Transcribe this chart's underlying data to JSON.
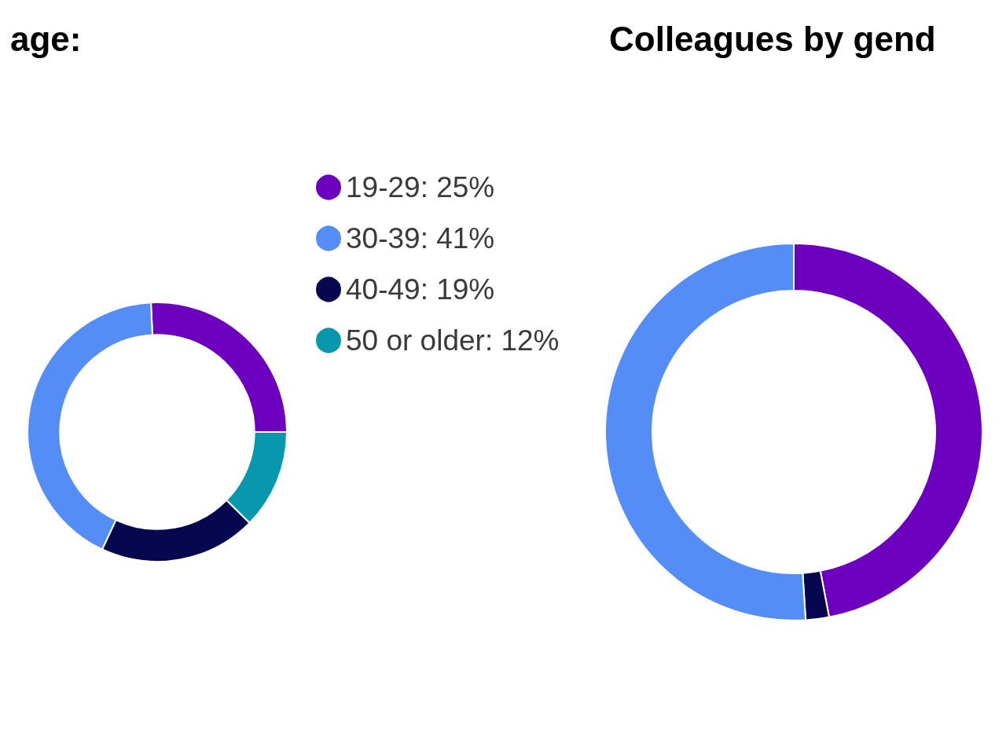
{
  "chart_data": [
    {
      "type": "donut",
      "title": "age:",
      "categories": [
        "19-29: 25%",
        "30-39: 41%",
        "40-49: 19%",
        "50 or older: 12%"
      ],
      "values": [
        25,
        41,
        19,
        12
      ],
      "colors": [
        "#6c00be",
        "#558df7",
        "#07074f",
        "#0898ae"
      ],
      "legend": "right"
    },
    {
      "type": "donut",
      "title": "Colleagues by gend",
      "categories": [
        null,
        null,
        null
      ],
      "values": [
        47,
        2,
        51
      ],
      "colors": [
        "#6c00be",
        "#07074f",
        "#558df7"
      ],
      "legend": false
    }
  ]
}
